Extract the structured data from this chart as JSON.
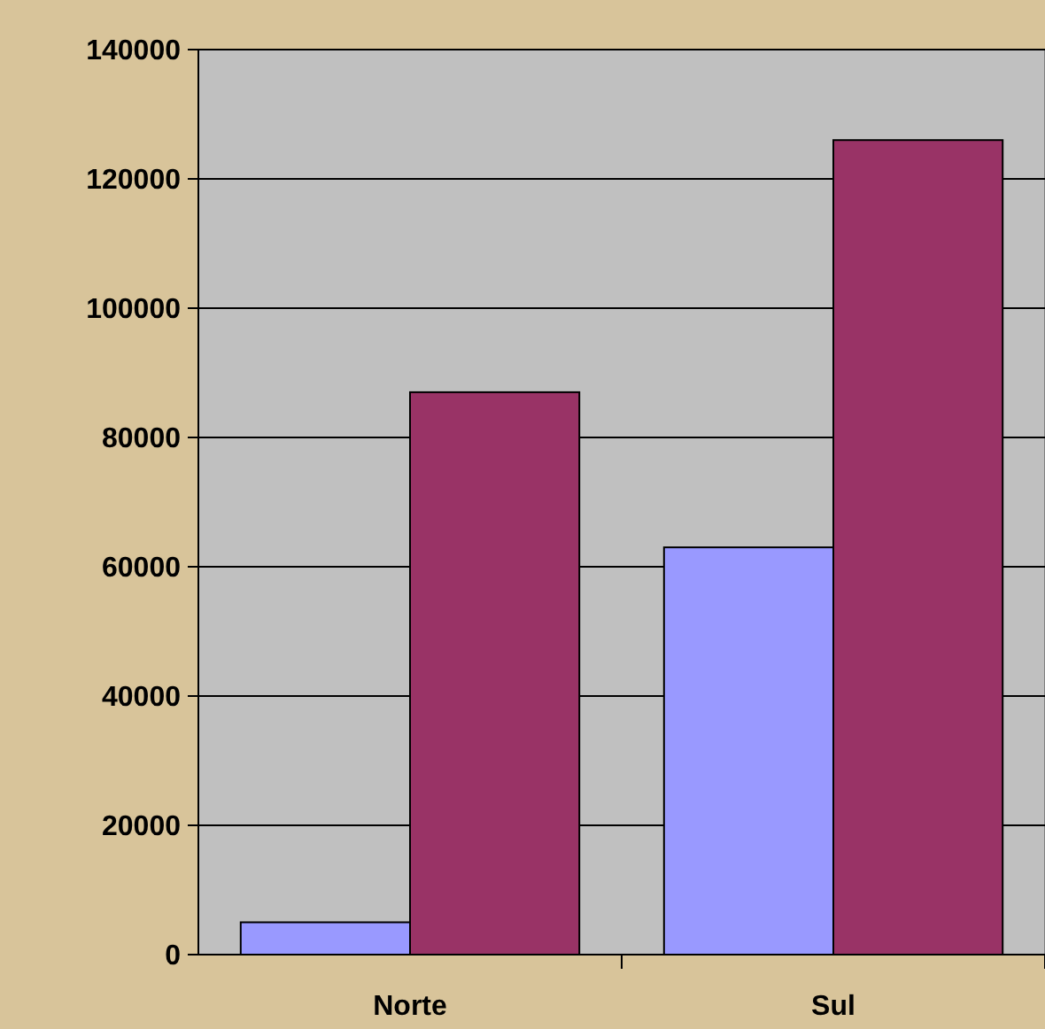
{
  "chart_data": {
    "type": "bar",
    "categories": [
      "Norte",
      "Sul"
    ],
    "series": [
      {
        "color": "#9999ff",
        "values": [
          5000,
          63000
        ]
      },
      {
        "color": "#993366",
        "values": [
          87000,
          126000
        ]
      }
    ],
    "ylim": [
      0,
      140000
    ],
    "yticks": [
      0,
      20000,
      40000,
      60000,
      80000,
      100000,
      120000,
      140000
    ],
    "grid": "y"
  }
}
